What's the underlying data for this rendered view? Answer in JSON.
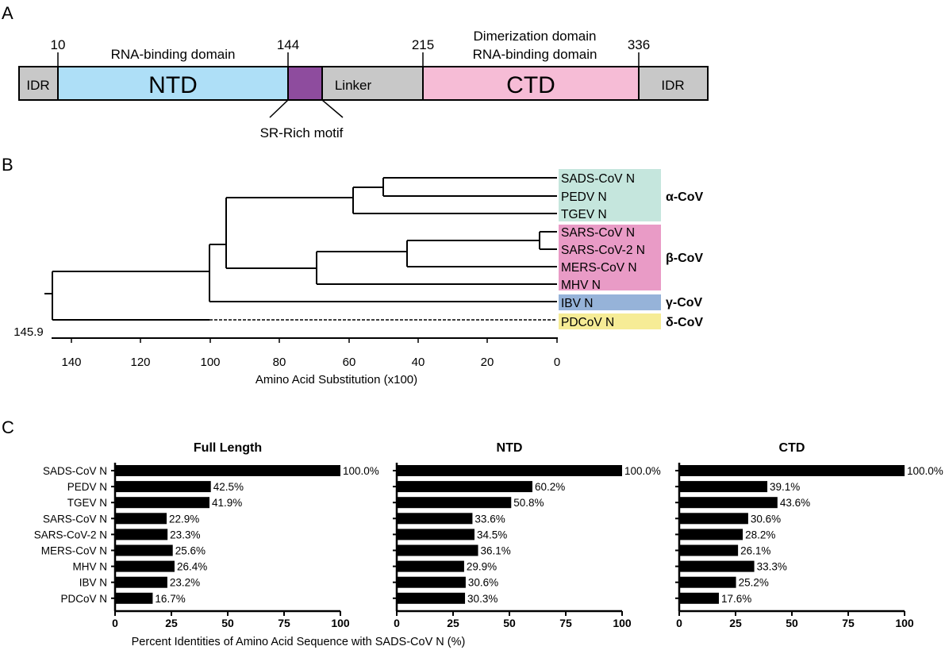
{
  "panel_a": {
    "letter": "A",
    "segments": [
      {
        "label": "IDR",
        "color": "#c8c8c8"
      },
      {
        "label": "NTD",
        "color": "#aedff7"
      },
      {
        "label": "",
        "color": "#8e4c9e"
      },
      {
        "label": "Linker",
        "color": "#c8c8c8"
      },
      {
        "label": "CTD",
        "color": "#f6bcd6"
      },
      {
        "label": "IDR",
        "color": "#c8c8c8"
      }
    ],
    "positions": [
      "10",
      "144",
      "215",
      "336"
    ],
    "ntd_function": "RNA-binding domain",
    "ctd_function_line1": "Dimerization domain",
    "ctd_function_line2": "RNA-binding domain",
    "motif_label": "SR-Rich motif"
  },
  "panel_b": {
    "letter": "B",
    "root_label": "145.9",
    "x_axis_label": "Amino Acid Substitution (x100)",
    "x_ticks": [
      "140",
      "120",
      "100",
      "80",
      "60",
      "40",
      "20",
      "0"
    ],
    "tips": [
      "SADS-CoV N",
      "PEDV N",
      "TGEV N",
      "SARS-CoV N",
      "SARS-CoV-2 N",
      "MERS-CoV N",
      "MHV N",
      "IBV N",
      "PDCoV N"
    ],
    "clades": [
      {
        "label": "α-CoV",
        "color": "#c5e6dd"
      },
      {
        "label": "β-CoV",
        "color": "#e99bc6"
      },
      {
        "label": "γ-CoV",
        "color": "#96b3d9"
      },
      {
        "label": "δ-CoV",
        "color": "#f6ec96"
      }
    ]
  },
  "panel_c": {
    "letter": "C",
    "x_axis_label": "Percent Identities of Amino Acid Sequence with SADS-CoV N (%)",
    "bar_color": "#000000"
  },
  "chart_data": [
    {
      "type": "bar",
      "orientation": "horizontal",
      "title": "Full Length",
      "categories": [
        "SADS-CoV N",
        "PEDV N",
        "TGEV N",
        "SARS-CoV N",
        "SARS-CoV-2 N",
        "MERS-CoV N",
        "MHV N",
        "IBV N",
        "PDCoV N"
      ],
      "values": [
        100.0,
        42.5,
        41.9,
        22.9,
        23.3,
        25.6,
        26.4,
        23.2,
        16.7
      ],
      "labels": [
        "100.0%",
        "42.5%",
        "41.9%",
        "22.9%",
        "23.3%",
        "25.6%",
        "26.4%",
        "23.2%",
        "16.7%"
      ],
      "xlim": [
        0,
        100
      ],
      "xticks": [
        "0",
        "25",
        "50",
        "75",
        "100"
      ]
    },
    {
      "type": "bar",
      "orientation": "horizontal",
      "title": "NTD",
      "categories": [
        "SADS-CoV N",
        "PEDV N",
        "TGEV N",
        "SARS-CoV N",
        "SARS-CoV-2 N",
        "MERS-CoV N",
        "MHV N",
        "IBV N",
        "PDCoV N"
      ],
      "values": [
        100.0,
        60.2,
        50.8,
        33.6,
        34.5,
        36.1,
        29.9,
        30.6,
        30.3
      ],
      "labels": [
        "100.0%",
        "60.2%",
        "50.8%",
        "33.6%",
        "34.5%",
        "36.1%",
        "29.9%",
        "30.6%",
        "30.3%"
      ],
      "xlim": [
        0,
        100
      ],
      "xticks": [
        "0",
        "25",
        "50",
        "75",
        "100"
      ]
    },
    {
      "type": "bar",
      "orientation": "horizontal",
      "title": "CTD",
      "categories": [
        "SADS-CoV N",
        "PEDV N",
        "TGEV N",
        "SARS-CoV N",
        "SARS-CoV-2 N",
        "MERS-CoV N",
        "MHV N",
        "IBV N",
        "PDCoV N"
      ],
      "values": [
        100.0,
        39.1,
        43.6,
        30.6,
        28.2,
        26.1,
        33.3,
        25.2,
        17.6
      ],
      "labels": [
        "100.0%",
        "39.1%",
        "43.6%",
        "30.6%",
        "28.2%",
        "26.1%",
        "33.3%",
        "25.2%",
        "17.6%"
      ],
      "xlim": [
        0,
        100
      ],
      "xticks": [
        "0",
        "25",
        "50",
        "75",
        "100"
      ]
    }
  ]
}
